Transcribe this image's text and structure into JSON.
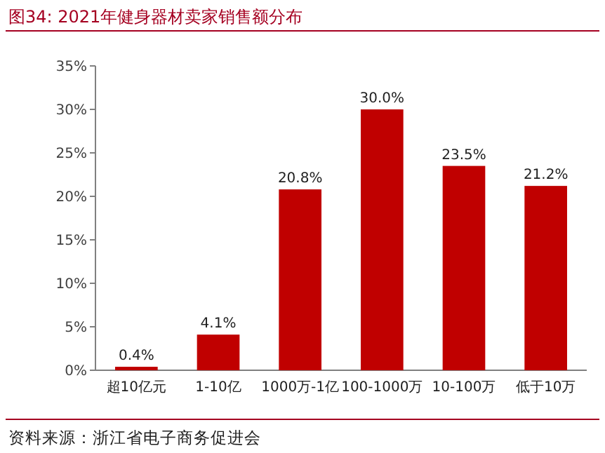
{
  "chart_data": {
    "type": "bar",
    "title": "图34:  2021年健身器材卖家销售额分布",
    "categories": [
      "超10亿元",
      "1-10亿",
      "1000万-1亿",
      "100-1000万",
      "10-100万",
      "低于10万"
    ],
    "values": [
      0.4,
      4.1,
      20.8,
      30.0,
      23.5,
      21.2
    ],
    "value_labels": [
      "0.4%",
      "4.1%",
      "20.8%",
      "30.0%",
      "23.5%",
      "21.2%"
    ],
    "color": "#c00000",
    "ylim": [
      0,
      35
    ],
    "yticks": [
      {
        "value": 0,
        "label": "0%"
      },
      {
        "value": 5,
        "label": "5%"
      },
      {
        "value": 10,
        "label": "10%"
      },
      {
        "value": 15,
        "label": "15%"
      },
      {
        "value": 20,
        "label": "20%"
      },
      {
        "value": 25,
        "label": "25%"
      },
      {
        "value": 30,
        "label": "30%"
      },
      {
        "value": 35,
        "label": "35%"
      }
    ],
    "annotations": [
      "资料来源：浙江省电子商务促进会"
    ]
  }
}
